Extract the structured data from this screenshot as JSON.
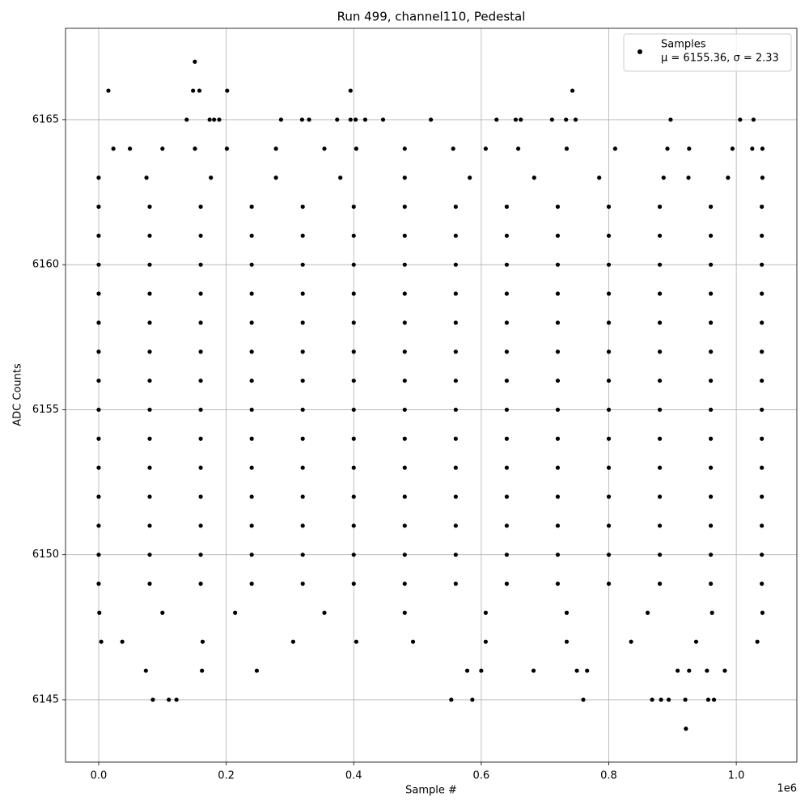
{
  "chart_data": {
    "type": "scatter",
    "title": "Run 499, channel110, Pedestal",
    "x_label": "Sample #",
    "y_label": "ADC Counts",
    "x_offset_label": "1e6",
    "xlim": [
      -52000,
      1095000
    ],
    "ylim": [
      6142.85,
      6168.15
    ],
    "xticks": [
      {
        "value": 0,
        "label": "0.0"
      },
      {
        "value": 200000,
        "label": "0.2"
      },
      {
        "value": 400000,
        "label": "0.4"
      },
      {
        "value": 600000,
        "label": "0.6"
      },
      {
        "value": 800000,
        "label": "0.8"
      },
      {
        "value": 1000000,
        "label": "1.0"
      }
    ],
    "yticks": [
      6145,
      6150,
      6155,
      6160,
      6165
    ],
    "grid": true,
    "legend": "upper right",
    "legend_note": "μ = 6155.36, σ = 2.33",
    "series": [
      {
        "name": "Samples",
        "color": "#000000",
        "x": [
          0,
          80000,
          160000,
          240000,
          320000,
          400000,
          480000,
          560000,
          640000,
          720000,
          800000,
          880000,
          960000,
          1040000,
          0,
          80000,
          160000,
          240000,
          320000,
          400000,
          480000,
          560000,
          640000,
          720000,
          800000,
          880000,
          960000,
          1040000,
          0,
          80000,
          160000,
          240000,
          320000,
          400000,
          480000,
          560000,
          640000,
          720000,
          800000,
          880000,
          960000,
          1040000,
          0,
          80000,
          160000,
          240000,
          320000,
          400000,
          480000,
          560000,
          640000,
          720000,
          800000,
          880000,
          960000,
          1040000,
          0,
          80000,
          160000,
          240000,
          320000,
          400000,
          480000,
          560000,
          640000,
          720000,
          800000,
          880000,
          960000,
          1040000,
          0,
          80000,
          160000,
          240000,
          320000,
          400000,
          480000,
          560000,
          640000,
          720000,
          800000,
          880000,
          960000,
          1040000,
          0,
          80000,
          160000,
          240000,
          320000,
          400000,
          480000,
          560000,
          640000,
          720000,
          800000,
          880000,
          960000,
          1040000,
          0,
          80000,
          160000,
          240000,
          320000,
          400000,
          480000,
          560000,
          640000,
          720000,
          800000,
          880000,
          960000,
          1040000,
          0,
          80000,
          160000,
          240000,
          320000,
          400000,
          480000,
          560000,
          640000,
          720000,
          800000,
          880000,
          960000,
          1040000,
          0,
          80000,
          160000,
          240000,
          320000,
          400000,
          480000,
          560000,
          640000,
          720000,
          800000,
          880000,
          960000,
          1040000,
          0,
          80000,
          160000,
          240000,
          320000,
          400000,
          480000,
          560000,
          640000,
          720000,
          800000,
          880000,
          960000,
          1040000,
          0,
          80000,
          160000,
          240000,
          320000,
          400000,
          480000,
          560000,
          640000,
          720000,
          800000,
          880000,
          960000,
          1040000,
          0,
          80000,
          160000,
          240000,
          320000,
          400000,
          480000,
          560000,
          640000,
          720000,
          800000,
          880000,
          960000,
          1040000,
          0,
          80000,
          160000,
          240000,
          320000,
          400000,
          480000,
          560000,
          640000,
          720000,
          800000,
          880000,
          960000,
          1040000,
          23000,
          49000,
          100000,
          151000,
          201000,
          278000,
          354000,
          404000,
          480000,
          556000,
          607000,
          658000,
          734000,
          810000,
          892000,
          926000,
          994000,
          1025000,
          1041000,
          0,
          75000,
          176000,
          278000,
          379000,
          480000,
          582000,
          683000,
          785000,
          886000,
          925000,
          987000,
          1041000,
          1000,
          100000,
          214000,
          354000,
          480000,
          607000,
          734000,
          861000,
          962000,
          1041000,
          4000,
          37000,
          163000,
          305000,
          404000,
          493000,
          607000,
          734000,
          835000,
          937000,
          1033000,
          74000,
          162000,
          248000,
          578000,
          600000,
          682000,
          750000,
          766000,
          908000,
          926000,
          954000,
          982000,
          85000,
          110000,
          122000,
          553000,
          586000,
          760000,
          868000,
          882000,
          894000,
          920000,
          956000,
          965000,
          138000,
          174000,
          181000,
          189000,
          286000,
          319000,
          330000,
          374000,
          395000,
          403000,
          418000,
          446000,
          521000,
          624000,
          654000,
          662000,
          711000,
          733000,
          748000,
          897000,
          1006000,
          1027000,
          15200,
          148000,
          158000,
          201500,
          395000,
          743000,
          150800,
          921000
        ],
        "values": [
          6162,
          6162,
          6162,
          6162,
          6162,
          6162,
          6162,
          6162,
          6162,
          6162,
          6162,
          6162,
          6162,
          6162,
          6161,
          6161,
          6161,
          6161,
          6161,
          6161,
          6161,
          6161,
          6161,
          6161,
          6161,
          6161,
          6161,
          6161,
          6160,
          6160,
          6160,
          6160,
          6160,
          6160,
          6160,
          6160,
          6160,
          6160,
          6160,
          6160,
          6160,
          6160,
          6159,
          6159,
          6159,
          6159,
          6159,
          6159,
          6159,
          6159,
          6159,
          6159,
          6159,
          6159,
          6159,
          6159,
          6158,
          6158,
          6158,
          6158,
          6158,
          6158,
          6158,
          6158,
          6158,
          6158,
          6158,
          6158,
          6158,
          6158,
          6157,
          6157,
          6157,
          6157,
          6157,
          6157,
          6157,
          6157,
          6157,
          6157,
          6157,
          6157,
          6157,
          6157,
          6156,
          6156,
          6156,
          6156,
          6156,
          6156,
          6156,
          6156,
          6156,
          6156,
          6156,
          6156,
          6156,
          6156,
          6155,
          6155,
          6155,
          6155,
          6155,
          6155,
          6155,
          6155,
          6155,
          6155,
          6155,
          6155,
          6155,
          6155,
          6154,
          6154,
          6154,
          6154,
          6154,
          6154,
          6154,
          6154,
          6154,
          6154,
          6154,
          6154,
          6154,
          6154,
          6153,
          6153,
          6153,
          6153,
          6153,
          6153,
          6153,
          6153,
          6153,
          6153,
          6153,
          6153,
          6153,
          6153,
          6152,
          6152,
          6152,
          6152,
          6152,
          6152,
          6152,
          6152,
          6152,
          6152,
          6152,
          6152,
          6152,
          6152,
          6151,
          6151,
          6151,
          6151,
          6151,
          6151,
          6151,
          6151,
          6151,
          6151,
          6151,
          6151,
          6151,
          6151,
          6150,
          6150,
          6150,
          6150,
          6150,
          6150,
          6150,
          6150,
          6150,
          6150,
          6150,
          6150,
          6150,
          6150,
          6149,
          6149,
          6149,
          6149,
          6149,
          6149,
          6149,
          6149,
          6149,
          6149,
          6149,
          6149,
          6149,
          6149,
          6164,
          6164,
          6164,
          6164,
          6164,
          6164,
          6164,
          6164,
          6164,
          6164,
          6164,
          6164,
          6164,
          6164,
          6164,
          6164,
          6164,
          6164,
          6164,
          6163,
          6163,
          6163,
          6163,
          6163,
          6163,
          6163,
          6163,
          6163,
          6163,
          6163,
          6163,
          6163,
          6148,
          6148,
          6148,
          6148,
          6148,
          6148,
          6148,
          6148,
          6148,
          6148,
          6147,
          6147,
          6147,
          6147,
          6147,
          6147,
          6147,
          6147,
          6147,
          6147,
          6147,
          6146,
          6146,
          6146,
          6146,
          6146,
          6146,
          6146,
          6146,
          6146,
          6146,
          6146,
          6146,
          6145,
          6145,
          6145,
          6145,
          6145,
          6145,
          6145,
          6145,
          6145,
          6145,
          6145,
          6145,
          6165,
          6165,
          6165,
          6165,
          6165,
          6165,
          6165,
          6165,
          6165,
          6165,
          6165,
          6165,
          6165,
          6165,
          6165,
          6165,
          6165,
          6165,
          6165,
          6165,
          6165,
          6165,
          6166,
          6166,
          6166,
          6166,
          6166,
          6166,
          6167,
          6144
        ]
      }
    ]
  }
}
